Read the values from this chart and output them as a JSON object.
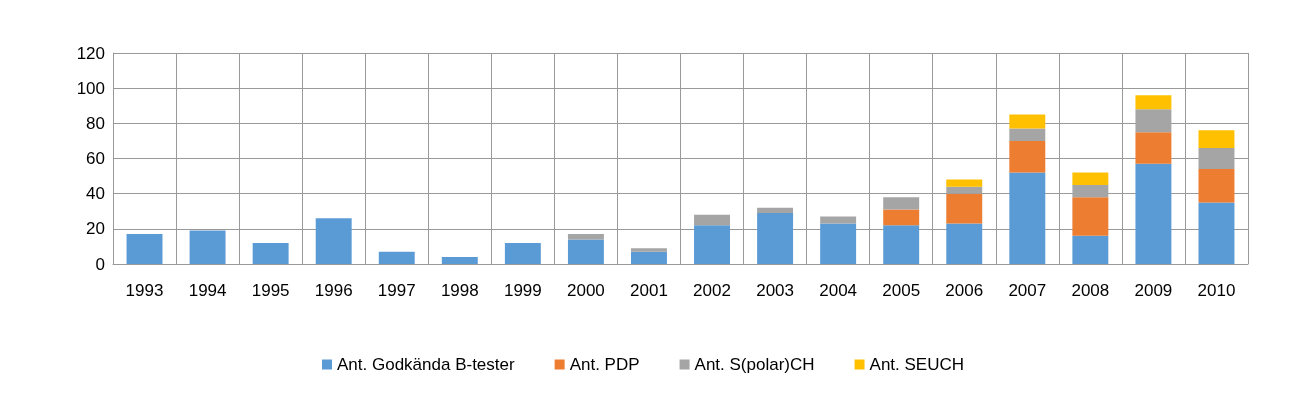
{
  "chart_data": {
    "type": "bar",
    "stacked": true,
    "categories": [
      "1993",
      "1994",
      "1995",
      "1996",
      "1997",
      "1998",
      "1999",
      "2000",
      "2001",
      "2002",
      "2003",
      "2004",
      "2005",
      "2006",
      "2007",
      "2008",
      "2009",
      "2010"
    ],
    "series": [
      {
        "name": "Ant. Godkända B-tester",
        "color": "#5b9bd5",
        "values": [
          17,
          19,
          12,
          26,
          7,
          4,
          12,
          14,
          7,
          22,
          29,
          23,
          22,
          23,
          52,
          16,
          57,
          35
        ]
      },
      {
        "name": "Ant. PDP",
        "color": "#ed7d31",
        "values": [
          0,
          0,
          0,
          0,
          0,
          0,
          0,
          0,
          0,
          0,
          0,
          0,
          9,
          17,
          18,
          22,
          18,
          19
        ]
      },
      {
        "name": "Ant. S(polar)CH",
        "color": "#a5a5a5",
        "values": [
          0,
          0,
          0,
          0,
          0,
          0,
          0,
          3,
          2,
          6,
          3,
          4,
          7,
          4,
          7,
          7,
          13,
          12
        ]
      },
      {
        "name": "Ant. SEUCH",
        "color": "#ffc000",
        "values": [
          0,
          0,
          0,
          0,
          0,
          0,
          0,
          0,
          0,
          0,
          0,
          0,
          0,
          4,
          8,
          7,
          8,
          10
        ]
      }
    ],
    "ylim": [
      0,
      120
    ],
    "yticks": [
      0,
      20,
      40,
      60,
      80,
      100,
      120
    ],
    "grid": true,
    "legend": "bottom"
  }
}
